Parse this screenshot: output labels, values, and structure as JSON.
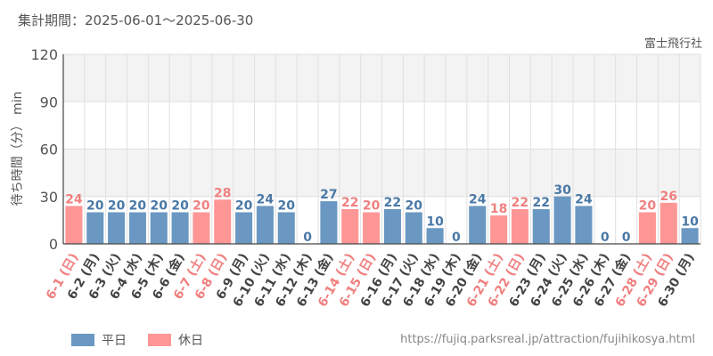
{
  "header": {
    "period": "集計期間：2025-06-01～2025-06-30",
    "attraction": "富士飛行社"
  },
  "footer": {
    "source": "https://fujiq.parksreal.jp/attraction/fujihikosya.html"
  },
  "legend": [
    {
      "label": "平日",
      "color": "#6a98c2"
    },
    {
      "label": "休日",
      "color": "#ff9696"
    }
  ],
  "colors": {
    "weekday": "#6a98c2",
    "holiday": "#ff9696",
    "weekday_text": "#4a78a6",
    "holiday_text": "#f07f7f",
    "band": "#f3f3f3",
    "grid": "#e0e0e0",
    "axis": "#444444"
  },
  "chart_data": {
    "type": "bar",
    "ylabel": "待ち時間（分） min",
    "ylim": [
      0,
      120
    ],
    "yticks": [
      0,
      30,
      60,
      90,
      120
    ],
    "grid": true,
    "legend_position": "bottom-left",
    "categories": [
      "6-1 (日)",
      "6-2 (月)",
      "6-3 (火)",
      "6-4 (水)",
      "6-5 (木)",
      "6-6 (金)",
      "6-7 (土)",
      "6-8 (日)",
      "6-9 (月)",
      "6-10 (火)",
      "6-11 (水)",
      "6-12 (木)",
      "6-13 (金)",
      "6-14 (土)",
      "6-15 (日)",
      "6-16 (月)",
      "6-17 (火)",
      "6-18 (水)",
      "6-19 (木)",
      "6-20 (金)",
      "6-21 (土)",
      "6-22 (日)",
      "6-23 (月)",
      "6-24 (火)",
      "6-25 (水)",
      "6-26 (木)",
      "6-27 (金)",
      "6-28 (土)",
      "6-29 (日)",
      "6-30 (月)"
    ],
    "values": [
      24,
      20,
      20,
      20,
      20,
      20,
      20,
      28,
      20,
      24,
      20,
      0,
      27,
      22,
      20,
      22,
      20,
      10,
      0,
      24,
      18,
      22,
      22,
      30,
      24,
      0,
      0,
      20,
      26,
      10
    ],
    "day_type": [
      "休日",
      "平日",
      "平日",
      "平日",
      "平日",
      "平日",
      "休日",
      "休日",
      "平日",
      "平日",
      "平日",
      "平日",
      "平日",
      "休日",
      "休日",
      "平日",
      "平日",
      "平日",
      "平日",
      "平日",
      "休日",
      "休日",
      "平日",
      "平日",
      "平日",
      "平日",
      "平日",
      "休日",
      "休日",
      "平日"
    ]
  }
}
